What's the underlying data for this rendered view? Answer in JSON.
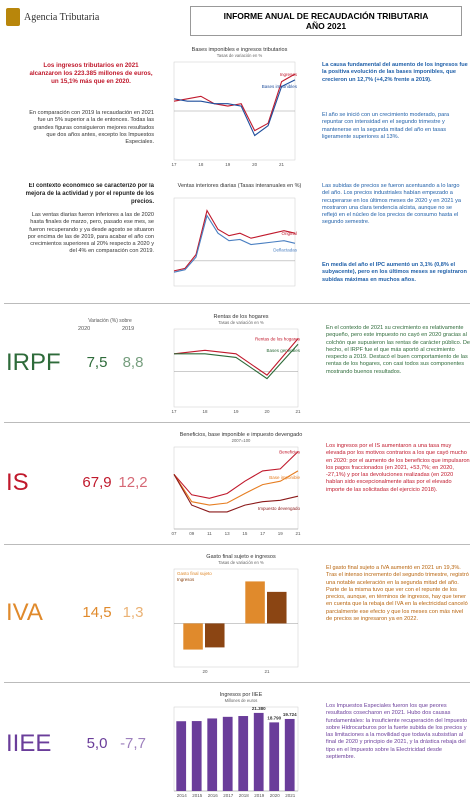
{
  "header": {
    "logo": "Agencia Tributaria",
    "title": "INFORME ANUAL DE RECAUDACIÓN TRIBUTARIA",
    "subtitle": "AÑO 2021"
  },
  "intro": {
    "left": [
      "Los ingresos tributarios en 2021 alcanzaron los 223.385 millones de euros, un 15,1% más que en 2020.",
      "En comparación con 2019 la recaudación en 2021 fue un 5% superior a la de entonces. Todas las grandes figuras consiguieron mejores resultados que dos años antes, excepto los Impuestos Especiales.",
      "El contexto económico se caracterizó por la mejora de la actividad y por el repunte de los precios.",
      "Las ventas diarias fueron inferiores a las de 2020 hasta finales de marzo, pero, pasado ese mes, se fueron recuperando y ya desde agosto se situaron por encima de las de 2019, para acabar el año con crecimientos superiores al 20% respecto a 2020 y del 4% en comparación con 2019."
    ],
    "right": [
      "La causa fundamental del aumento de los ingresos fue la positiva evolución de las bases imponibles, que crecieron un 12,7% (+4,2% frente a 2019).",
      "El año se inició con un crecimiento moderado, para repuntar con intensidad en el segundo trimestre y mantenerse en la segunda mitad del año en tasas ligeramente superiores al 13%.",
      "Las subidas de precios se fueron acentuando a lo largo del año. Los precios industriales habían empezado a recuperarse en los últimos meses de 2020 y en 2021 ya mostraron una clara tendencia alcista, aunque no se reflejó en el núcleo de los precios de consumo hasta el segundo semestre.",
      "En media del año el IPC aumentó un 3,1% (0,8% el subyacente), pero en los últimos meses se registraron subidas máximas en muchos años."
    ]
  },
  "charts": [
    {
      "type": "line",
      "title": "Bases imponibles e ingresos tributarios",
      "subtitle": "Tasas de variación en %",
      "categories": [
        "17",
        null,
        "18",
        null,
        "19",
        null,
        "20",
        null,
        "21",
        null
      ],
      "ylim": [
        -20,
        20
      ],
      "series": [
        {
          "name": "Ingresos",
          "color": "#c0192c",
          "values": [
            4,
            5,
            6,
            3,
            2,
            3,
            -8,
            -5,
            12,
            15.1
          ]
        },
        {
          "name": "Bases imponibles",
          "color": "#1f4e9c",
          "values": [
            5,
            4,
            4,
            3,
            3,
            2,
            -10,
            -6,
            10,
            12.7
          ]
        }
      ]
    },
    {
      "type": "line",
      "title": "Ventas interiores diarias (Tasas interanuales en %)",
      "categories": [
        null,
        null,
        null,
        null,
        null,
        null,
        null,
        null,
        null,
        null,
        null,
        null
      ],
      "ylim": [
        -20,
        50
      ],
      "series": [
        {
          "name": "Original",
          "color": "#c0192c",
          "values": [
            -8,
            -6,
            5,
            40,
            25,
            20,
            22,
            18,
            20,
            22,
            24,
            22
          ]
        },
        {
          "name": "Deflactadas",
          "color": "#4a7fc1",
          "values": [
            -9,
            -7,
            3,
            36,
            22,
            16,
            17,
            13,
            14,
            15,
            16,
            14
          ]
        }
      ]
    },
    {
      "type": "line",
      "title": "Rentas de los hogares",
      "subtitle": "Tasas de variación en %",
      "categories": [
        "17",
        "18",
        "19",
        "20",
        "21"
      ],
      "ylim": [
        -10,
        12
      ],
      "series": [
        {
          "name": "Rentas de los hogares",
          "color": "#c0192c",
          "values": [
            5,
            6,
            5,
            -1,
            9.3
          ]
        },
        {
          "name": "Bases generales",
          "color": "#2e6b3a",
          "values": [
            5,
            5,
            4,
            -2,
            7.7
          ]
        }
      ]
    },
    {
      "type": "line",
      "title": "Beneficios, base imponible e impuesto devengado",
      "subtitle": "2007=100",
      "categories": [
        "07",
        "09",
        "11",
        "13",
        "15",
        "17",
        "19",
        "21"
      ],
      "ylim": [
        20,
        140
      ],
      "series": [
        {
          "name": "Beneficios",
          "color": "#c0192c",
          "values": [
            100,
            70,
            65,
            72,
            90,
            105,
            108,
            133.2
          ]
        },
        {
          "name": "Base imponible",
          "color": "#e67e22",
          "values": [
            100,
            60,
            55,
            58,
            72,
            85,
            90,
            105
          ]
        },
        {
          "name": "Impuesto devengado",
          "color": "#8b1a1a",
          "values": [
            100,
            55,
            45,
            45,
            55,
            60,
            62,
            68
          ]
        }
      ]
    },
    {
      "type": "bar",
      "title": "Gasto final sujeto e ingresos",
      "subtitle": "Tasas de variación en %",
      "categories": [
        "20",
        "21"
      ],
      "ylim": [
        -20,
        25
      ],
      "series": [
        {
          "name": "Gasto final sujeto",
          "color": "#e08a2c",
          "values": [
            -12,
            19.3
          ]
        },
        {
          "name": "Ingresos",
          "color": "#8b4513",
          "values": [
            -11,
            14.5
          ]
        }
      ]
    },
    {
      "type": "bar",
      "title": "Ingresos por IIEE",
      "subtitle": "Millones de euros",
      "categories": [
        "2014",
        "2015",
        "2016",
        "2017",
        "2018",
        "2019",
        "2020",
        "2021"
      ],
      "ylim": [
        0,
        23000
      ],
      "color": "#6a3d9a",
      "values": [
        19104,
        19147,
        19866,
        20308,
        20528,
        21380,
        18790,
        19724
      ],
      "value_labels": [
        null,
        null,
        null,
        null,
        null,
        "21.380",
        "18.790",
        "19.724"
      ]
    }
  ],
  "table": {
    "header": "Variación (%) sobre",
    "columns": [
      "2020",
      "2019"
    ],
    "rows": [
      {
        "name": "IRPF",
        "color": "#2e6b3a",
        "v2020": "7,5",
        "v2019": "8,8",
        "text": "En el contexto de 2021 su crecimiento es relativamente pequeño, pero este impuesto no cayó en 2020 gracias al colchón que supusieron las rentas de carácter público. De hecho, el IRPF fue el que más aportó al crecimiento respecto a 2019. Destacó el buen comportamiento de las rentas de los hogares, con casi todos sus componentes mostrando buenos resultados."
      },
      {
        "name": "IS",
        "color": "#c0192c",
        "v2020": "67,9",
        "v2019": "12,2",
        "text": "Los ingresos por el IS aumentaron a una tasa muy elevada por los motivos contrarios a los que cayó mucho en 2020: por el aumento de los beneficios que impulsaron los pagos fraccionados (en 2021, +53,7%; en 2020, -27,1%) y por las devoluciones realizadas (en 2020 habían sido excepcionalmente altas por el elevado importe de las solicitadas del ejercicio 2018)."
      },
      {
        "name": "IVA",
        "color": "#e08a2c",
        "v2020": "14,5",
        "v2019": "1,3",
        "text": "El gasto final sujeto a IVA aumentó en 2021 un 19,3%. Tras el intenso incremento del segundo trimestre, registró una notable aceleración en la segunda mitad del año. Parte de la misma tuvo que ver con el repunte de los precios, aunque, en términos de ingresos, hay que tener en cuenta que la rebaja del IVA en la electricidad canceló parcialmente ese efecto y que los meses con más nivel de precios se ingresaron ya en 2022."
      },
      {
        "name": "IIEE",
        "color": "#6a3d9a",
        "v2020": "5,0",
        "v2019": "-7,7",
        "text": "Los Impuestos Especiales fueron los que peores resultados cosecharon en 2021. Hubo dos causas fundamentales: la insuficiente recuperación del Impuesto sobre Hidrocarburos por la fuerte subida de los precios y las limitaciones a la movilidad que todavía subsistían al final de 2020 y principio de 2021, y la drástica rebaja del tipo en el Impuesto sobre la Electricidad desde septiembre."
      }
    ]
  }
}
